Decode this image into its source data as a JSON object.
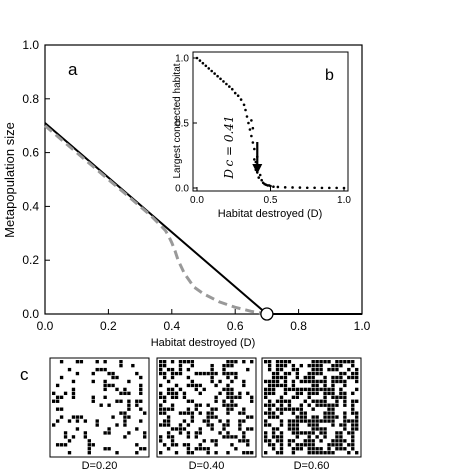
{
  "chart_data": [
    {
      "panel": "a",
      "type": "line",
      "xlabel": "Habitat destroyed (D)",
      "ylabel": "Metapopulation size",
      "xlim": [
        0,
        1
      ],
      "ylim": [
        0,
        1
      ],
      "xticks": [
        "0.0",
        "0.2",
        "0.4",
        "0.6",
        "0.8",
        "1.0"
      ],
      "yticks": [
        "0.0",
        "0.2",
        "0.4",
        "0.6",
        "0.8",
        "1.0"
      ],
      "series": [
        {
          "style": "solid",
          "color": "#000000",
          "x": [
            0.0,
            0.7,
            1.0
          ],
          "y": [
            0.71,
            0.0,
            0.0
          ]
        },
        {
          "style": "dashed",
          "color": "#999999",
          "x": [
            0.0,
            0.05,
            0.1,
            0.15,
            0.2,
            0.25,
            0.3,
            0.33,
            0.36,
            0.38,
            0.39,
            0.4,
            0.41,
            0.42,
            0.44,
            0.47,
            0.5,
            0.55,
            0.6,
            0.65,
            0.7
          ],
          "y": [
            0.7,
            0.65,
            0.6,
            0.55,
            0.5,
            0.45,
            0.4,
            0.37,
            0.335,
            0.31,
            0.29,
            0.265,
            0.235,
            0.2,
            0.15,
            0.1,
            0.075,
            0.045,
            0.025,
            0.01,
            0.0
          ]
        }
      ],
      "marker": {
        "label": "open circle",
        "x": 0.7,
        "y": 0.0
      }
    },
    {
      "panel": "b",
      "type": "scatter",
      "xlabel": "Habitat destroyed (D)",
      "ylabel": "Largest connected habitat",
      "xlim": [
        0,
        1
      ],
      "ylim": [
        0,
        1
      ],
      "xticks": [
        "0.0",
        "0.5",
        "1.0"
      ],
      "yticks": [
        "0.0",
        "0.5",
        "1.0"
      ],
      "annotation": {
        "text": "D c = 0.41",
        "arrow_x": 0.41
      },
      "points": {
        "x": [
          0.0,
          0.02,
          0.04,
          0.06,
          0.08,
          0.1,
          0.12,
          0.14,
          0.16,
          0.18,
          0.2,
          0.22,
          0.24,
          0.26,
          0.28,
          0.3,
          0.32,
          0.33,
          0.34,
          0.35,
          0.36,
          0.37,
          0.37,
          0.38,
          0.38,
          0.39,
          0.39,
          0.4,
          0.4,
          0.41,
          0.41,
          0.42,
          0.42,
          0.43,
          0.44,
          0.45,
          0.46,
          0.47,
          0.48,
          0.49,
          0.5,
          0.52,
          0.55,
          0.6,
          0.65,
          0.7,
          0.75,
          0.8,
          0.85,
          0.9,
          0.95,
          1.0
        ],
        "y": [
          1.0,
          0.98,
          0.96,
          0.94,
          0.92,
          0.9,
          0.88,
          0.86,
          0.84,
          0.82,
          0.8,
          0.78,
          0.76,
          0.73,
          0.71,
          0.68,
          0.64,
          0.6,
          0.55,
          0.5,
          0.45,
          0.4,
          0.52,
          0.46,
          0.35,
          0.3,
          0.22,
          0.2,
          0.14,
          0.12,
          0.24,
          0.08,
          0.16,
          0.1,
          0.06,
          0.04,
          0.03,
          0.025,
          0.02,
          0.02,
          0.015,
          0.01,
          0.008,
          0.005,
          0.004,
          0.003,
          0.002,
          0.002,
          0.001,
          0.001,
          0.001,
          0.0
        ]
      }
    }
  ],
  "panel_labels": {
    "a": "a",
    "b": "b",
    "c": "c"
  },
  "snapshots": [
    {
      "label": "D=0.20",
      "density": 0.2,
      "seed": 3
    },
    {
      "label": "D=0.40",
      "density": 0.4,
      "seed": 11
    },
    {
      "label": "D=0.60",
      "density": 0.6,
      "seed": 29
    }
  ]
}
